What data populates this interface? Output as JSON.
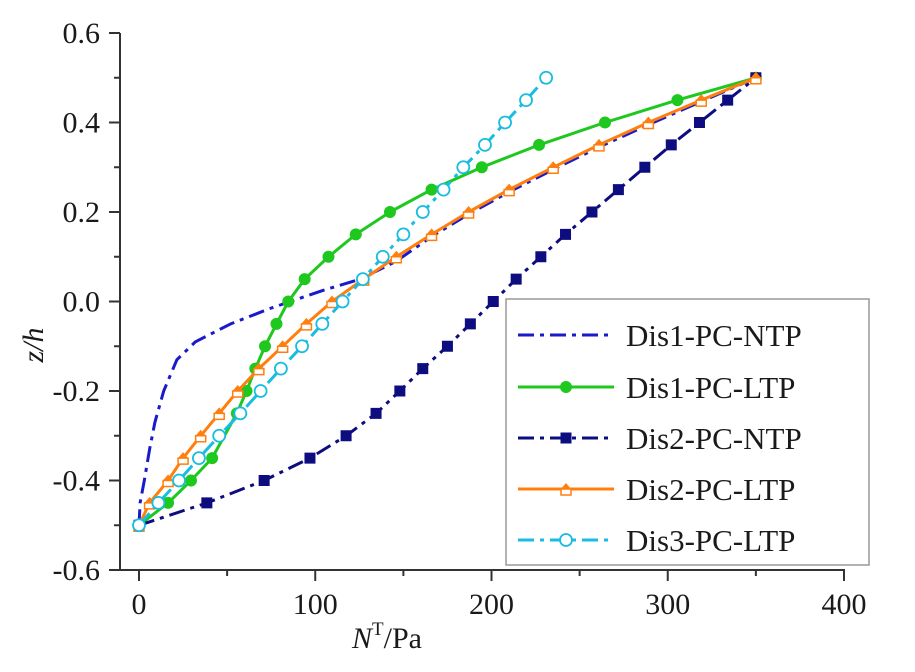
{
  "chart_data": {
    "type": "line",
    "title": "",
    "xlabel": {
      "main": "N",
      "superscript": "T",
      "unit": "/Pa"
    },
    "ylabel": "z/h",
    "xlim": [
      -10,
      400
    ],
    "ylim": [
      -0.6,
      0.6
    ],
    "x_ticks": [
      0,
      100,
      200,
      300,
      400
    ],
    "x_tick_labels": [
      "0",
      "100",
      "200",
      "300",
      "400"
    ],
    "x_minor_ticks": [
      50,
      150,
      250,
      350
    ],
    "y_ticks": [
      -0.6,
      -0.4,
      -0.2,
      0.0,
      0.2,
      0.4,
      0.6
    ],
    "y_tick_labels": [
      "-0.6",
      "-0.4",
      "-0.2",
      "0.0",
      "0.2",
      "0.4",
      "0.6"
    ],
    "y_minor_ticks": [
      -0.5,
      -0.3,
      -0.1,
      0.1,
      0.3,
      0.5
    ],
    "grid": false,
    "legend_position": "bottom-right",
    "series": [
      {
        "name": "Dis1-PC-NTP",
        "color": "#1a1acc",
        "line": "dashdot",
        "marker": "none",
        "x": [
          0,
          0.6,
          3,
          6,
          9,
          14,
          21.5,
          32,
          52,
          74,
          104.5,
          125.5,
          146,
          166,
          187,
          210,
          235,
          261,
          289,
          319,
          350
        ],
        "y": [
          -0.5,
          -0.45,
          -0.4,
          -0.33,
          -0.27,
          -0.2,
          -0.13,
          -0.09,
          -0.05,
          -0.016,
          0.025,
          0.05,
          0.09,
          0.145,
          0.195,
          0.245,
          0.295,
          0.345,
          0.395,
          0.447,
          0.5
        ]
      },
      {
        "name": "Dis1-PC-LTP",
        "color": "#1ec81e",
        "line": "solid",
        "marker": "filled-circle",
        "x": [
          0,
          16.5,
          29.5,
          41.5,
          55.5,
          61,
          66,
          71.5,
          78,
          84.7,
          94,
          107.5,
          123,
          142.4,
          166,
          194.5,
          227,
          264.4,
          305.5,
          350
        ],
        "y": [
          -0.5,
          -0.45,
          -0.4,
          -0.35,
          -0.25,
          -0.2,
          -0.15,
          -0.1,
          -0.05,
          0.0,
          0.05,
          0.1,
          0.15,
          0.2,
          0.25,
          0.3,
          0.35,
          0.4,
          0.45,
          0.5
        ]
      },
      {
        "name": "Dis2-PC-NTP",
        "color": "#0d0d80",
        "line": "dashdot",
        "marker": "filled-square",
        "x": [
          0,
          38.5,
          71,
          97,
          117.5,
          134.5,
          148,
          161,
          175,
          188,
          201,
          214,
          228,
          242,
          257,
          272,
          287,
          302,
          318,
          334,
          350
        ],
        "y": [
          -0.5,
          -0.45,
          -0.4,
          -0.35,
          -0.3,
          -0.25,
          -0.2,
          -0.15,
          -0.1,
          -0.05,
          0.0,
          0.05,
          0.1,
          0.15,
          0.2,
          0.25,
          0.3,
          0.35,
          0.4,
          0.45,
          0.5
        ]
      },
      {
        "name": "Dis2-PC-LTP",
        "color": "#ff7f0e",
        "line": "solid",
        "marker": "half-filled-pentagon",
        "x": [
          0,
          6,
          16.5,
          25,
          35,
          45.5,
          56,
          68,
          81.5,
          95,
          109.5,
          127.5,
          146,
          166,
          187,
          210,
          235,
          261,
          289,
          319,
          350
        ],
        "y": [
          -0.5,
          -0.45,
          -0.4,
          -0.35,
          -0.3,
          -0.25,
          -0.2,
          -0.15,
          -0.1,
          -0.05,
          0.0,
          0.05,
          0.1,
          0.15,
          0.2,
          0.25,
          0.3,
          0.35,
          0.4,
          0.45,
          0.5
        ]
      },
      {
        "name": "Dis3-PC-LTP",
        "color": "#18bde0",
        "line": "dashdot",
        "marker": "open-circle",
        "x": [
          0,
          11,
          22.7,
          34,
          45.5,
          57.5,
          69,
          80.5,
          92.5,
          104,
          115.5,
          127,
          138.3,
          150,
          161,
          172.8,
          184,
          196.3,
          207.7,
          219.6,
          231
        ],
        "y": [
          -0.5,
          -0.45,
          -0.4,
          -0.35,
          -0.3,
          -0.25,
          -0.2,
          -0.15,
          -0.1,
          -0.05,
          0.0,
          0.05,
          0.1,
          0.15,
          0.2,
          0.25,
          0.3,
          0.35,
          0.4,
          0.45,
          0.5
        ]
      }
    ]
  }
}
